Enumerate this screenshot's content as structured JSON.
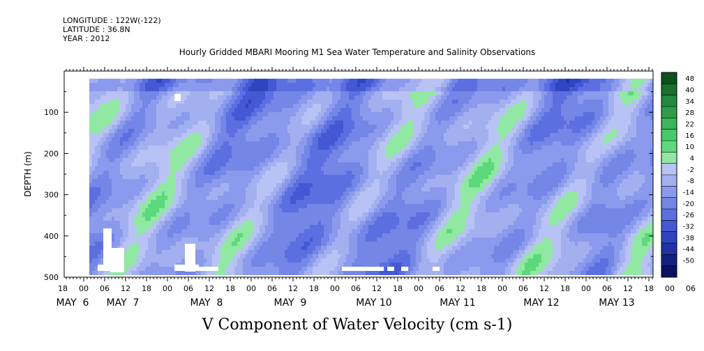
{
  "header": {
    "longitude": "LONGITUDE : 122W(-122)",
    "latitude": "LATITUDE : 36.8N",
    "year": "YEAR : 2012"
  },
  "chart_data": {
    "type": "heatmap",
    "title": "Hourly Gridded MBARI Mooring M1 Sea Water Temperature and Salinity Observations",
    "xlabel": "V Component of Water Velocity (cm s-1)",
    "ylabel": "DEPTH (m)",
    "ylim": [
      500,
      0
    ],
    "yticks": [
      100,
      200,
      300,
      400,
      500
    ],
    "x_hour_ticks": [
      "18",
      "00",
      "06",
      "12",
      "18",
      "00",
      "06",
      "12",
      "18",
      "00",
      "06",
      "12",
      "18",
      "00",
      "06",
      "12",
      "18",
      "00",
      "06",
      "12",
      "18",
      "00",
      "06",
      "12",
      "18",
      "00",
      "06",
      "12",
      "18",
      "00",
      "06",
      "12",
      "18"
    ],
    "day_labels": [
      "MAY  6",
      "MAY  7",
      "MAY  8",
      "MAY  9",
      "MAY 10",
      "MAY 11",
      "MAY 12",
      "MAY 13"
    ],
    "colorbar_levels": [
      "48",
      "40",
      "34",
      "28",
      "22",
      "16",
      "10",
      "4",
      "-2",
      "-8",
      "-14",
      "-20",
      "-26",
      "-32",
      "-38",
      "-44",
      "-50"
    ],
    "colorbar_colors": [
      "#0c4f1f",
      "#1a6f2d",
      "#25883c",
      "#2f9d4b",
      "#3ab55b",
      "#48c96a",
      "#5cd97c",
      "#90e8a2",
      "#b8c2f4",
      "#a3b0f0",
      "#8b9aec",
      "#7486e6",
      "#5b6fe0",
      "#4358d2",
      "#2e45c0",
      "#1f32a6",
      "#14207f",
      "#0a1260"
    ],
    "field_description": "V-velocity field sampled over depth 20-490 m and time May 6 00h - May 13 18h"
  }
}
